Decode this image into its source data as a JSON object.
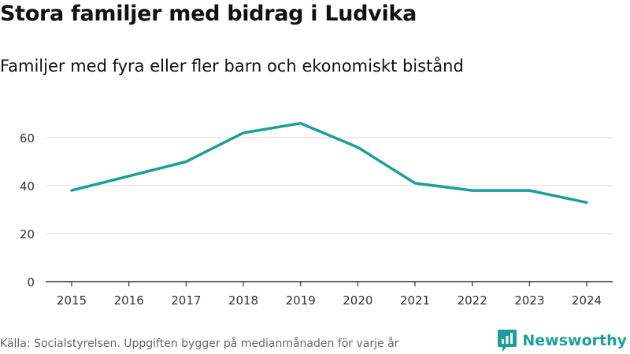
{
  "header": {
    "title": "Stora familjer med bidrag i Ludvika",
    "subtitle": "Familjer med fyra eller fler barn och ekonomiskt bistånd"
  },
  "footer": {
    "source": "Källa: Socialstyrelsen. Uppgiften bygger på medianmånaden för varje år",
    "brand": "Newsworthy"
  },
  "colors": {
    "line": "#1aa09a",
    "grid": "#dddddd",
    "axis": "#333333",
    "brand": "#1aa09a"
  },
  "icons": {
    "brand": "newsworthy-logo-icon"
  },
  "chart_data": {
    "type": "line",
    "title": "Stora familjer med bidrag i Ludvika",
    "subtitle": "Familjer med fyra eller fler barn och ekonomiskt bistånd",
    "xlabel": "",
    "ylabel": "",
    "x": [
      "2015",
      "2016",
      "2017",
      "2018",
      "2019",
      "2020",
      "2021",
      "2022",
      "2023",
      "2024"
    ],
    "series": [
      {
        "name": "Familjer",
        "values": [
          38,
          44,
          50,
          62,
          66,
          56,
          41,
          38,
          38,
          33
        ]
      }
    ],
    "ylim": [
      0,
      70
    ],
    "yticks": [
      0,
      20,
      40,
      60
    ],
    "grid": true,
    "legend": "none"
  }
}
